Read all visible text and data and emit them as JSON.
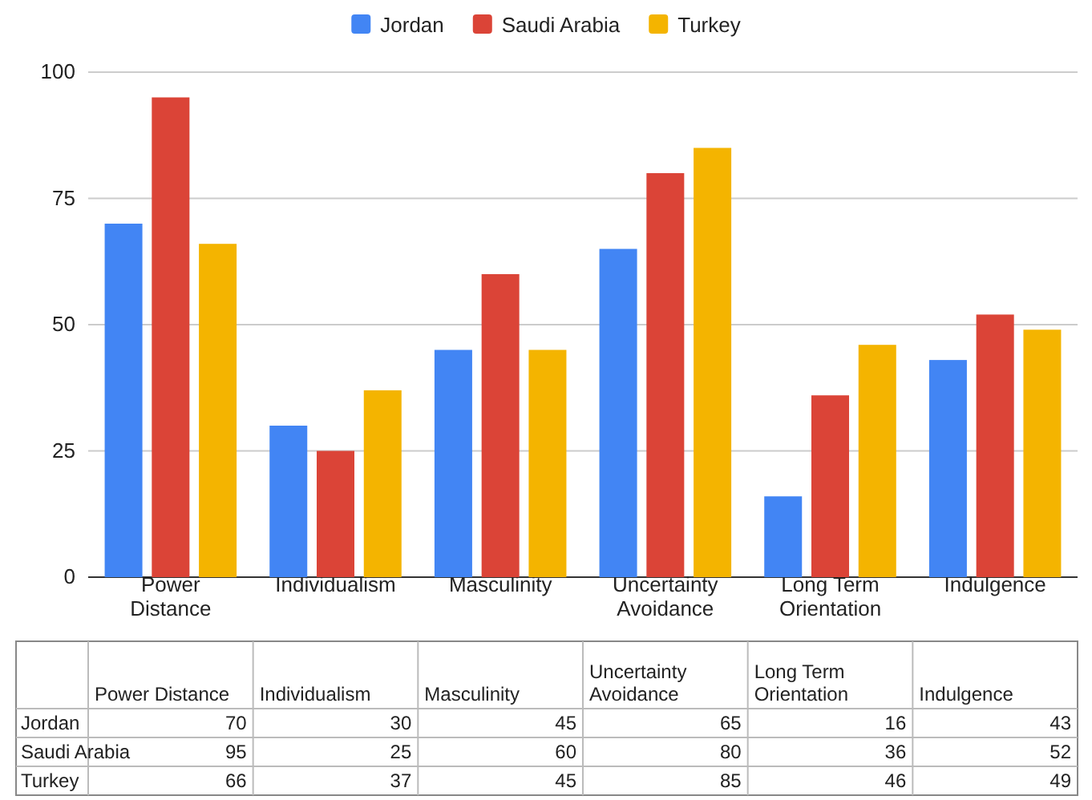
{
  "chart_data": {
    "type": "bar",
    "categories": [
      "Power Distance",
      "Individualism",
      "Masculinity",
      "Uncertainty Avoidance",
      "Long Term Orientation",
      "Indulgence"
    ],
    "series": [
      {
        "name": "Jordan",
        "color": "#4285f4",
        "values": [
          70,
          30,
          45,
          65,
          16,
          43
        ]
      },
      {
        "name": "Saudi Arabia",
        "color": "#db4437",
        "values": [
          95,
          25,
          60,
          80,
          36,
          52
        ]
      },
      {
        "name": "Turkey",
        "color": "#f4b400",
        "values": [
          66,
          37,
          45,
          85,
          46,
          49
        ]
      }
    ],
    "ylim": [
      0,
      100
    ],
    "yticks": [
      0,
      25,
      50,
      75,
      100
    ],
    "grid": "y",
    "legend": "top",
    "data_labels": true
  }
}
